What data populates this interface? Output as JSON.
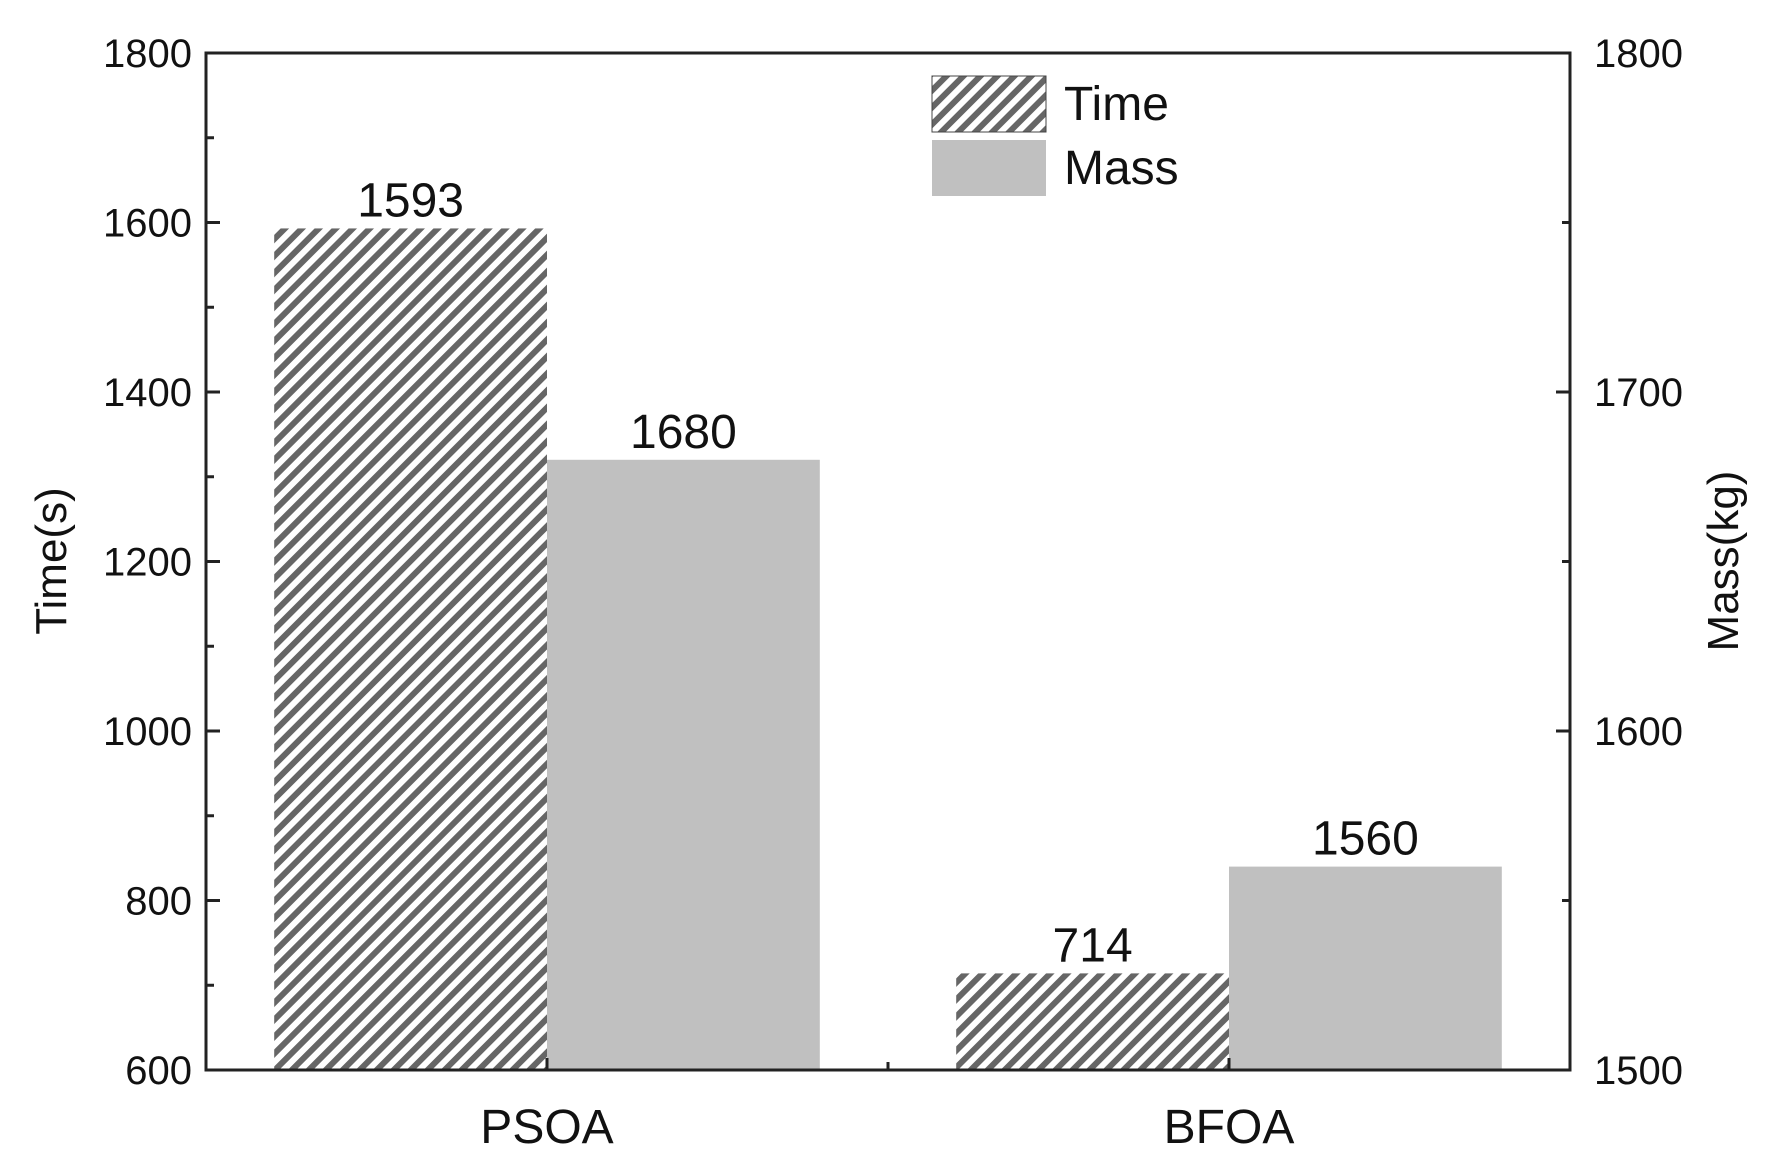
{
  "chart_data": {
    "type": "bar",
    "categories": [
      "PSOA",
      "BFOA"
    ],
    "series": [
      {
        "name": "Time",
        "axis": "left",
        "values": [
          1593,
          714
        ],
        "labels": [
          "1593",
          "714"
        ],
        "fill": "hatched",
        "color": "#666666"
      },
      {
        "name": "Mass",
        "axis": "right",
        "values": [
          1680,
          1560
        ],
        "labels": [
          "1680",
          "1560"
        ],
        "fill": "solid",
        "color": "#c0c0c0"
      }
    ],
    "title": "",
    "xlabel": "",
    "ylabel_left": "Time(s)",
    "ylabel_right": "Mass(kg)",
    "ylim_left": [
      600,
      1800
    ],
    "ylim_right": [
      1500,
      1800
    ],
    "yticks_left": [
      "600",
      "800",
      "1000",
      "1200",
      "1400",
      "1600",
      "1800"
    ],
    "yticks_right": [
      "1500",
      "1600",
      "1700",
      "1800"
    ],
    "grid": false,
    "legend_position": "top-center"
  }
}
